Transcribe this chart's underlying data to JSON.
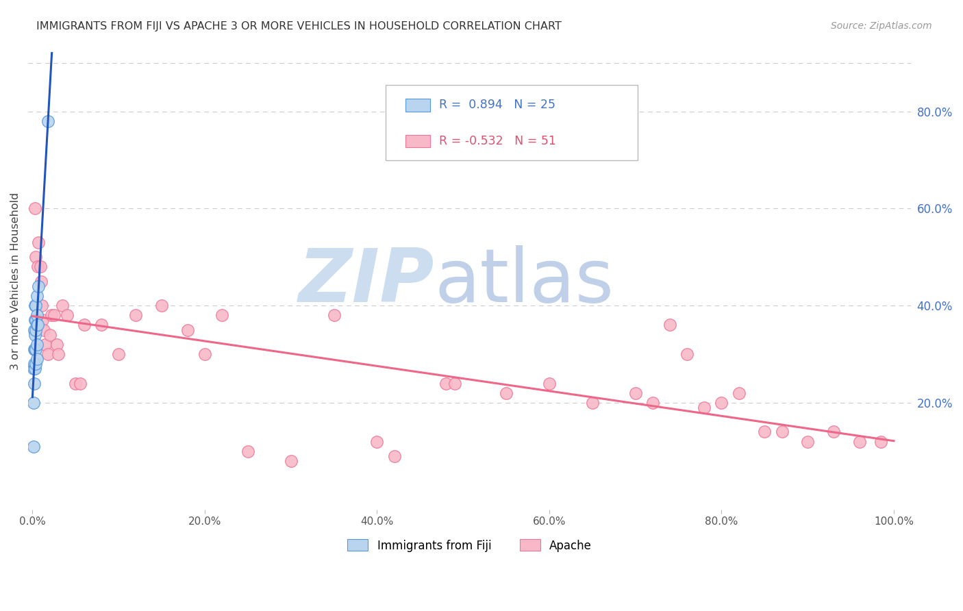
{
  "title": "IMMIGRANTS FROM FIJI VS APACHE 3 OR MORE VEHICLES IN HOUSEHOLD CORRELATION CHART",
  "source_text": "Source: ZipAtlas.com",
  "ylabel": "3 or more Vehicles in Household",
  "right_ytick_labels": [
    "20.0%",
    "40.0%",
    "60.0%",
    "80.0%"
  ],
  "right_ytick_values": [
    0.2,
    0.4,
    0.6,
    0.8
  ],
  "xtick_labels": [
    "0.0%",
    "20.0%",
    "40.0%",
    "60.0%",
    "80.0%",
    "100.0%"
  ],
  "xtick_values": [
    0.0,
    0.2,
    0.4,
    0.6,
    0.8,
    1.0
  ],
  "xlim": [
    -0.005,
    1.02
  ],
  "ylim": [
    -0.02,
    0.92
  ],
  "legend_label1": "Immigrants from Fiji",
  "legend_label2": "Apache",
  "fiji_dot_color": "#b8d4ee",
  "apache_dot_color": "#f8b8c8",
  "fiji_edge_color": "#5599dd",
  "apache_edge_color": "#ee7799",
  "fiji_line_color": "#2255bb",
  "apache_line_color": "#ee6688",
  "background_color": "#ffffff",
  "grid_color": "#cccccc",
  "fiji_x": [
    0.001,
    0.001,
    0.001,
    0.002,
    0.002,
    0.002,
    0.002,
    0.003,
    0.003,
    0.003,
    0.003,
    0.003,
    0.004,
    0.004,
    0.004,
    0.004,
    0.004,
    0.005,
    0.005,
    0.005,
    0.005,
    0.005,
    0.006,
    0.007,
    0.018
  ],
  "fiji_y": [
    0.11,
    0.2,
    0.27,
    0.24,
    0.28,
    0.31,
    0.35,
    0.27,
    0.31,
    0.34,
    0.37,
    0.4,
    0.28,
    0.31,
    0.35,
    0.37,
    0.4,
    0.29,
    0.32,
    0.36,
    0.38,
    0.42,
    0.36,
    0.44,
    0.78
  ],
  "apache_x": [
    0.003,
    0.004,
    0.006,
    0.007,
    0.009,
    0.01,
    0.011,
    0.012,
    0.013,
    0.015,
    0.018,
    0.02,
    0.022,
    0.025,
    0.028,
    0.03,
    0.035,
    0.04,
    0.05,
    0.055,
    0.06,
    0.08,
    0.1,
    0.12,
    0.15,
    0.18,
    0.2,
    0.22,
    0.25,
    0.3,
    0.35,
    0.4,
    0.42,
    0.48,
    0.49,
    0.55,
    0.6,
    0.65,
    0.7,
    0.72,
    0.74,
    0.76,
    0.78,
    0.8,
    0.82,
    0.85,
    0.87,
    0.9,
    0.93,
    0.96,
    0.985
  ],
  "apache_y": [
    0.6,
    0.5,
    0.48,
    0.53,
    0.48,
    0.45,
    0.4,
    0.37,
    0.35,
    0.32,
    0.3,
    0.34,
    0.38,
    0.38,
    0.32,
    0.3,
    0.4,
    0.38,
    0.24,
    0.24,
    0.36,
    0.36,
    0.3,
    0.38,
    0.4,
    0.35,
    0.3,
    0.38,
    0.1,
    0.08,
    0.38,
    0.12,
    0.09,
    0.24,
    0.24,
    0.22,
    0.24,
    0.2,
    0.22,
    0.2,
    0.36,
    0.3,
    0.19,
    0.2,
    0.22,
    0.14,
    0.14,
    0.12,
    0.14,
    0.12,
    0.12
  ],
  "watermark_zip_color": "#ccddf0",
  "watermark_atlas_color": "#c0d0e8",
  "legend_r1_text": "R =  0.894   N = 25",
  "legend_r2_text": "R = -0.532   N = 51",
  "legend_r1_color": "#4472c4",
  "legend_r2_color": "#e05070"
}
